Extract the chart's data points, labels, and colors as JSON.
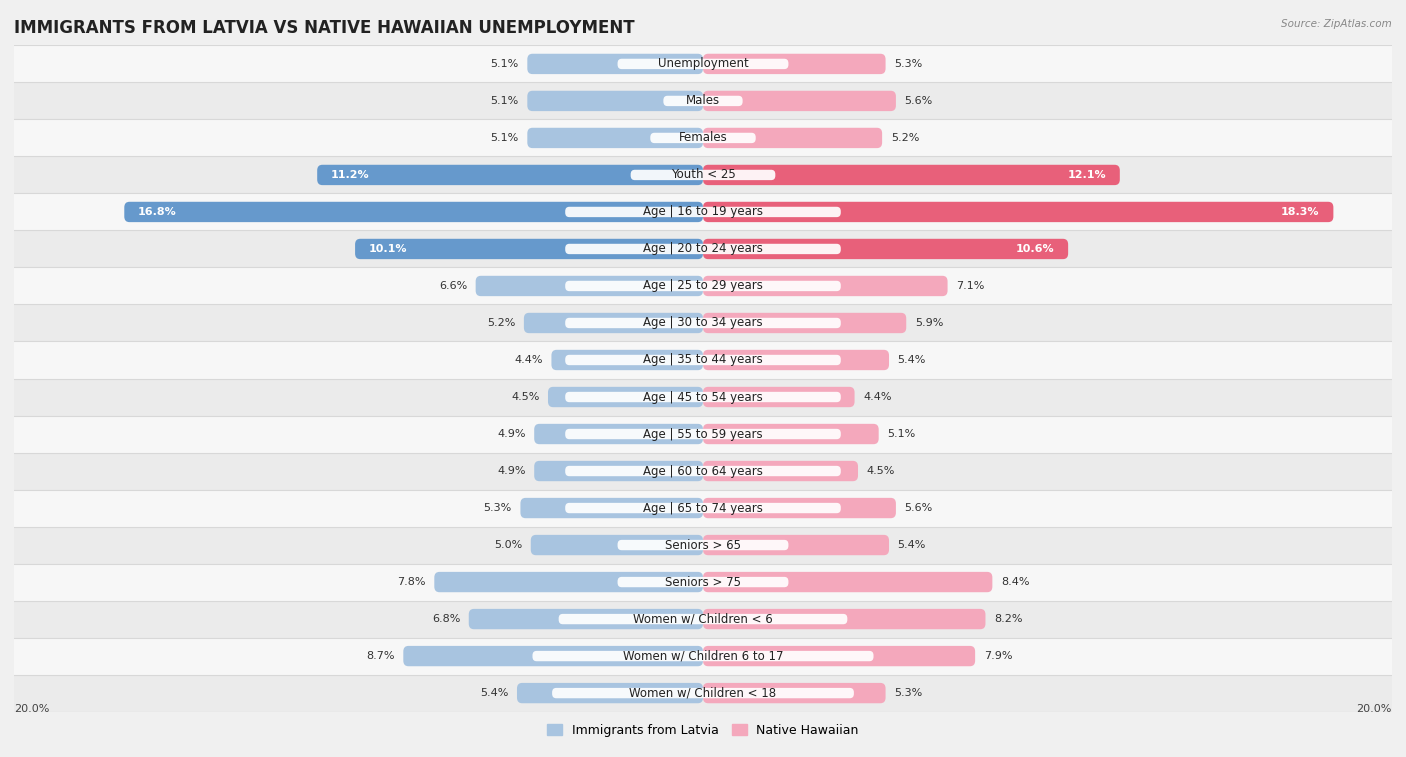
{
  "title": "IMMIGRANTS FROM LATVIA VS NATIVE HAWAIIAN UNEMPLOYMENT",
  "source": "Source: ZipAtlas.com",
  "categories": [
    "Unemployment",
    "Males",
    "Females",
    "Youth < 25",
    "Age | 16 to 19 years",
    "Age | 20 to 24 years",
    "Age | 25 to 29 years",
    "Age | 30 to 34 years",
    "Age | 35 to 44 years",
    "Age | 45 to 54 years",
    "Age | 55 to 59 years",
    "Age | 60 to 64 years",
    "Age | 65 to 74 years",
    "Seniors > 65",
    "Seniors > 75",
    "Women w/ Children < 6",
    "Women w/ Children 6 to 17",
    "Women w/ Children < 18"
  ],
  "latvia_values": [
    5.1,
    5.1,
    5.1,
    11.2,
    16.8,
    10.1,
    6.6,
    5.2,
    4.4,
    4.5,
    4.9,
    4.9,
    5.3,
    5.0,
    7.8,
    6.8,
    8.7,
    5.4
  ],
  "hawaiian_values": [
    5.3,
    5.6,
    5.2,
    12.1,
    18.3,
    10.6,
    7.1,
    5.9,
    5.4,
    4.4,
    5.1,
    4.5,
    5.6,
    5.4,
    8.4,
    8.2,
    7.9,
    5.3
  ],
  "latvia_color_normal": "#a8c4e0",
  "latvia_color_highlight": "#6699cc",
  "hawaiian_color_normal": "#f4a8bc",
  "hawaiian_color_highlight": "#e8607a",
  "row_bg_white": "#f7f7f7",
  "row_bg_gray": "#ebebeb",
  "row_separator": "#d8d8d8",
  "background_color": "#f0f0f0",
  "max_value": 20.0,
  "legend_latvia": "Immigrants from Latvia",
  "legend_hawaiian": "Native Hawaiian",
  "title_fontsize": 12,
  "label_fontsize": 8.5,
  "value_fontsize": 8,
  "bar_height": 0.55
}
